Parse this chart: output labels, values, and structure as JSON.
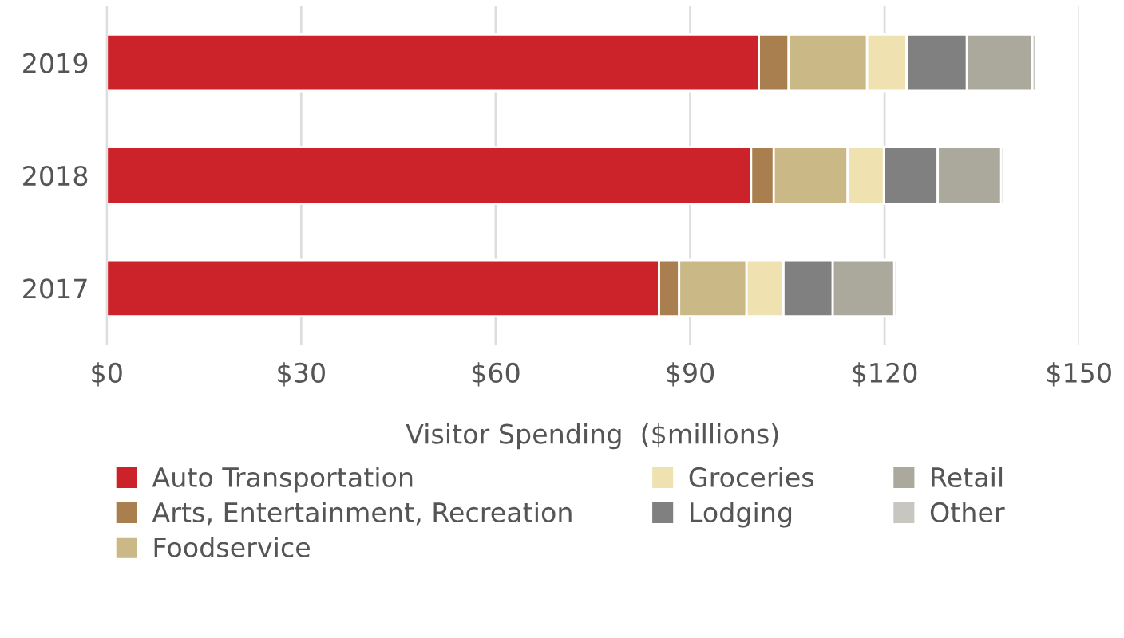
{
  "chart_data": {
    "type": "bar",
    "orientation": "horizontal",
    "stacked": true,
    "categories": [
      "2019",
      "2018",
      "2017"
    ],
    "xlabel": "Visitor Spending  ($millions)",
    "xlim": [
      0,
      150
    ],
    "xticks": [
      {
        "value": 0,
        "label": "$0"
      },
      {
        "value": 30,
        "label": "$30"
      },
      {
        "value": 60,
        "label": "$60"
      },
      {
        "value": 90,
        "label": "$90"
      },
      {
        "value": 120,
        "label": "$120"
      },
      {
        "value": 150,
        "label": "$150"
      }
    ],
    "grid": "x",
    "legend": "bottom",
    "series": [
      {
        "name": "Auto Transportation",
        "color": "#cc2229",
        "values": [
          100.6,
          99.4,
          85.2
        ]
      },
      {
        "name": "Arts, Entertainment, Recreation",
        "color": "#a97f50",
        "values": [
          4.6,
          3.5,
          3.1
        ]
      },
      {
        "name": "Foodservice",
        "color": "#cbb887",
        "values": [
          12.1,
          11.4,
          10.4
        ]
      },
      {
        "name": "Groceries",
        "color": "#efe2b0",
        "values": [
          6.1,
          5.6,
          5.7
        ]
      },
      {
        "name": "Lodging",
        "color": "#808080",
        "values": [
          9.3,
          8.3,
          7.6
        ]
      },
      {
        "name": "Retail",
        "color": "#aba89c",
        "values": [
          10.1,
          9.8,
          9.5
        ]
      },
      {
        "name": "Other",
        "color": "#c8c6c0",
        "values": [
          0.6,
          0.4,
          0.4
        ]
      }
    ]
  }
}
